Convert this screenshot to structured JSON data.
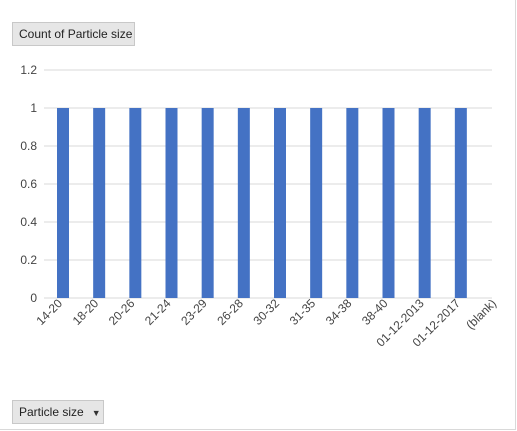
{
  "value_field_button": {
    "label": "Count of Particle size"
  },
  "axis_field_button": {
    "label": "Particle size",
    "dropdown_icon": "dropdown-arrow-icon"
  },
  "colors": {
    "bar": "#4472c4",
    "grid": "#d9d9d9",
    "tick_text": "#444444"
  },
  "chart_data": {
    "type": "bar",
    "categories": [
      "14-20",
      "18-20",
      "20-26",
      "21-24",
      "23-29",
      "26-28",
      "30-32",
      "31-35",
      "34-38",
      "38-40",
      "01-12-2013",
      "01-12-2017",
      "(blank)"
    ],
    "values": [
      1,
      1,
      1,
      1,
      1,
      1,
      1,
      1,
      1,
      1,
      1,
      1,
      0
    ],
    "ylim": [
      0,
      1.2
    ],
    "yticks": [
      0,
      0.2,
      0.4,
      0.6,
      0.8,
      1,
      1.2
    ],
    "grid": true,
    "legend": "none"
  }
}
